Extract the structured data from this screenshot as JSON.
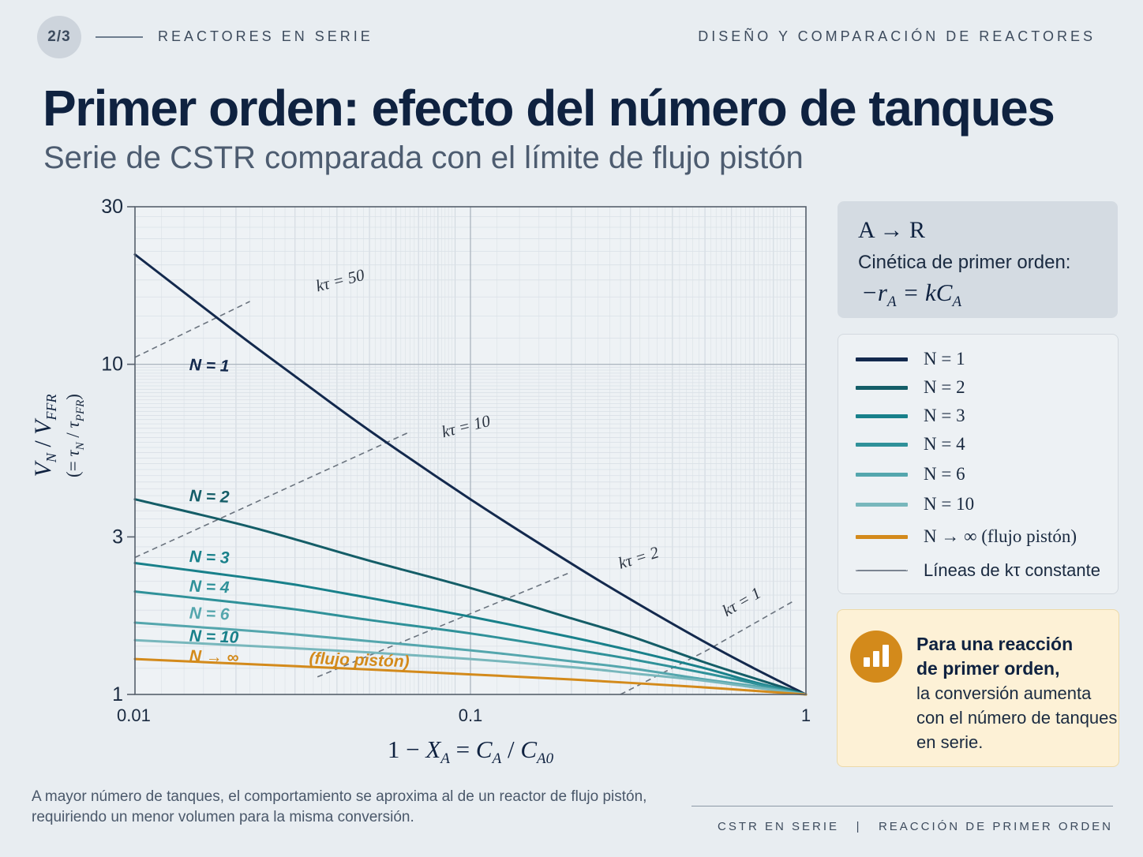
{
  "header": {
    "page_indicator": "2/3",
    "section": "REACTORES EN SERIE",
    "deck": "DISEÑO Y COMPARACIÓN DE REACTORES"
  },
  "title": "Primer orden: efecto del número de tanques",
  "subtitle": "Serie de CSTR comparada con el límite de flujo pistón",
  "reaction_card": {
    "reaction": "A → R",
    "kinetics_label": "Cinética de primer orden:",
    "rate_law_lhs": "−r",
    "rate_law_lhs_sub": "A",
    "rate_law_mid": " = kC",
    "rate_law_rhs_sub": "A"
  },
  "legend": {
    "items": [
      {
        "label": "N = 1",
        "color": "#13294d",
        "style": "solid"
      },
      {
        "label": "N = 2",
        "color": "#145d67",
        "style": "solid"
      },
      {
        "label": "N = 3",
        "color": "#18808a",
        "style": "solid"
      },
      {
        "label": "N = 4",
        "color": "#2f9199",
        "style": "solid"
      },
      {
        "label": "N = 6",
        "color": "#54a6ad",
        "style": "solid"
      },
      {
        "label": "N = 10",
        "color": "#78b7bc",
        "style": "solid"
      },
      {
        "label": "N → ∞ (flujo pistón)",
        "color": "#d38a1b",
        "style": "solid"
      },
      {
        "label": "Líneas de kτ constante",
        "color": "#7b8491",
        "style": "dashed"
      }
    ]
  },
  "note": {
    "icon": "bar-chart-icon",
    "strong_line_1": "Para una reacción",
    "strong_line_2": "de primer orden,",
    "body_line_1": "la conversión aumenta",
    "body_line_2": "con el número de tanques",
    "body_line_3": "en serie."
  },
  "caption": {
    "line_1": "A mayor número de tanques, el comportamiento se aproxima al de un reactor de flujo pistón,",
    "line_2": "requiriendo un menor volumen para la misma conversión."
  },
  "footer": "CSTR EN SERIE   |   REACCIÓN DE PRIMER ORDEN",
  "chart_data": {
    "type": "line",
    "x_scale": "log",
    "y_scale": "log",
    "xlim": [
      0.01,
      1
    ],
    "ylim": [
      1,
      30
    ],
    "x_ticks": [
      "0.01",
      "0.1",
      "1"
    ],
    "y_ticks": [
      "1",
      "3",
      "10",
      "30"
    ],
    "xlabel": "1 − X_A = C_A / C_A0",
    "ylabel": "V_N / V_PFR (= τ_N / τ_PFR)",
    "grid": true,
    "series": [
      {
        "name": "N = 1",
        "color": "#13294d",
        "x": [
          0.01,
          0.02,
          0.03,
          0.05,
          0.1,
          0.2,
          0.3,
          0.5,
          0.7,
          1.0
        ],
        "y": [
          21.5,
          12.5,
          9.2,
          6.3,
          3.9,
          2.49,
          1.94,
          1.44,
          1.2,
          1.0
        ]
      },
      {
        "name": "N = 2",
        "color": "#145d67",
        "x": [
          0.01,
          0.02,
          0.03,
          0.05,
          0.1,
          0.2,
          0.3,
          0.5,
          0.7,
          1.0
        ],
        "y": [
          3.9,
          3.3,
          2.95,
          2.54,
          2.1,
          1.7,
          1.5,
          1.25,
          1.12,
          1.0
        ]
      },
      {
        "name": "N = 3",
        "color": "#18808a",
        "x": [
          0.01,
          0.02,
          0.03,
          0.05,
          0.1,
          0.2,
          0.3,
          0.5,
          0.7,
          1.0
        ],
        "y": [
          2.5,
          2.28,
          2.15,
          1.96,
          1.72,
          1.49,
          1.36,
          1.2,
          1.09,
          1.0
        ]
      },
      {
        "name": "N = 4",
        "color": "#2f9199",
        "x": [
          0.01,
          0.02,
          0.03,
          0.05,
          0.1,
          0.2,
          0.3,
          0.5,
          0.7,
          1.0
        ],
        "y": [
          2.05,
          1.9,
          1.81,
          1.68,
          1.53,
          1.37,
          1.28,
          1.16,
          1.08,
          1.0
        ]
      },
      {
        "name": "N = 6",
        "color": "#54a6ad",
        "x": [
          0.01,
          0.02,
          0.03,
          0.05,
          0.1,
          0.2,
          0.3,
          0.5,
          0.7,
          1.0
        ],
        "y": [
          1.65,
          1.57,
          1.52,
          1.45,
          1.36,
          1.26,
          1.2,
          1.11,
          1.06,
          1.0
        ]
      },
      {
        "name": "N = 10",
        "color": "#78b7bc",
        "x": [
          0.01,
          0.02,
          0.03,
          0.05,
          0.1,
          0.2,
          0.3,
          0.5,
          0.7,
          1.0
        ],
        "y": [
          1.46,
          1.41,
          1.38,
          1.34,
          1.28,
          1.21,
          1.16,
          1.1,
          1.05,
          1.0
        ]
      },
      {
        "name": "N → ∞ (flujo pistón)",
        "color": "#d38a1b",
        "x": [
          0.01,
          0.02,
          0.05,
          0.1,
          0.2,
          0.5,
          1.0
        ],
        "y": [
          1.28,
          1.24,
          1.19,
          1.15,
          1.11,
          1.05,
          1.0
        ]
      }
    ],
    "series_labels": [
      {
        "text": "N = 1",
        "x": 0.0145,
        "y": 9.6,
        "color": "#13294d"
      },
      {
        "text": "N = 2",
        "x": 0.0145,
        "y": 3.85,
        "color": "#145d67"
      },
      {
        "text": "N = 3",
        "x": 0.0145,
        "y": 2.52,
        "color": "#18808a"
      },
      {
        "text": "N = 4",
        "x": 0.0145,
        "y": 2.05,
        "color": "#2f9199"
      },
      {
        "text": "N = 6",
        "x": 0.0145,
        "y": 1.7,
        "color": "#54a6ad"
      },
      {
        "text": "N = 10",
        "x": 0.0145,
        "y": 1.45,
        "color": "#18808a"
      },
      {
        "text": "N → ∞",
        "x": 0.0145,
        "y": 1.26,
        "color": "#d38a1b"
      },
      {
        "text": "(flujo pistón)",
        "x": 0.033,
        "y": 1.24,
        "color": "#d38a1b"
      }
    ],
    "ktau_lines": [
      {
        "label": "kτ = 50",
        "points": [
          [
            0.01,
            10.5
          ],
          [
            0.022,
            15.5
          ]
        ],
        "label_at": [
          0.035,
          16.6
        ],
        "angle": -14
      },
      {
        "label": "kτ = 10",
        "points": [
          [
            0.01,
            2.6
          ],
          [
            0.065,
            6.2
          ]
        ],
        "label_at": [
          0.083,
          6.0
        ],
        "angle": -14
      },
      {
        "label": "kτ = 2",
        "points": [
          [
            0.035,
            1.13
          ],
          [
            0.2,
            2.35
          ]
        ],
        "label_at": [
          0.28,
          2.4
        ],
        "angle": -17
      },
      {
        "label": "kτ = 1",
        "points": [
          [
            0.28,
            1.0
          ],
          [
            0.5,
            1.35
          ],
          [
            0.92,
            1.92
          ]
        ],
        "label_at": [
          0.58,
          1.72
        ],
        "angle": -30
      }
    ]
  }
}
